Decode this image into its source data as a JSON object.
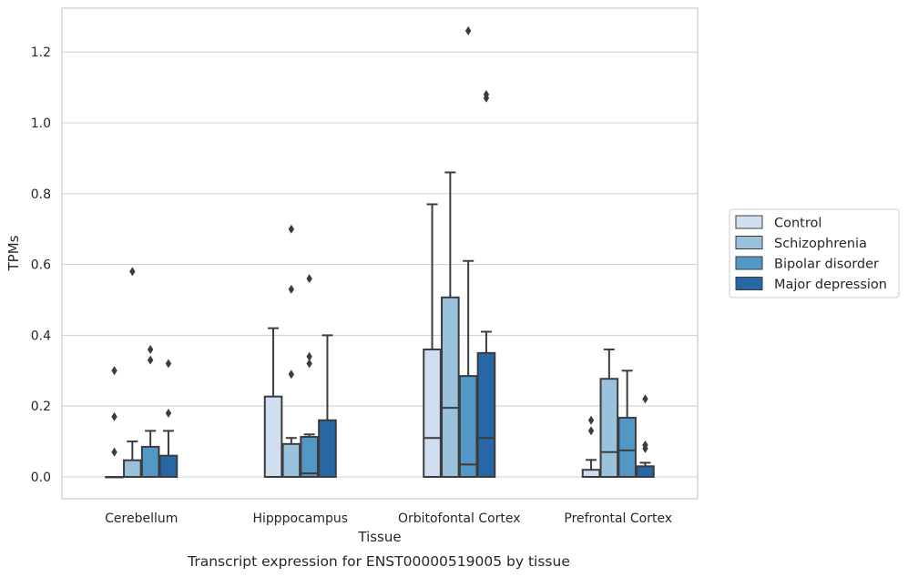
{
  "chart_data": {
    "type": "box",
    "xlabel": "Tissue",
    "ylabel": "TPMs",
    "caption": "Transcript expression for ENST00000519005 by tissue",
    "ylim": [
      -0.062,
      1.325
    ],
    "yticks": [
      0.0,
      0.2,
      0.4,
      0.6,
      0.8,
      1.0,
      1.2
    ],
    "ytick_labels": [
      "0.0",
      "0.2",
      "0.4",
      "0.6",
      "0.8",
      "1.0",
      "1.2"
    ],
    "grid": "horizontal",
    "legend_position": "right",
    "categories": [
      "Cerebellum",
      "Hipppocampus",
      "Orbitofontal Cortex",
      "Prefrontal Cortex"
    ],
    "series": [
      {
        "name": "Control",
        "color": "#cfdff0",
        "boxes": [
          {
            "q1": 0.0,
            "median": 0.0,
            "q3": 0.0,
            "whisker_low": 0.0,
            "whisker_high": 0.0,
            "outliers": [
              0.07,
              0.17,
              0.3
            ]
          },
          {
            "q1": 0.0,
            "median": 0.0,
            "q3": 0.227,
            "whisker_low": 0.0,
            "whisker_high": 0.42,
            "outliers": []
          },
          {
            "q1": 0.0,
            "median": 0.11,
            "q3": 0.36,
            "whisker_low": 0.0,
            "whisker_high": 0.77,
            "outliers": []
          },
          {
            "q1": 0.0,
            "median": 0.0,
            "q3": 0.02,
            "whisker_low": 0.0,
            "whisker_high": 0.048,
            "outliers": [
              0.13,
              0.16
            ]
          }
        ]
      },
      {
        "name": "Schizophrenia",
        "color": "#9ac2dc",
        "boxes": [
          {
            "q1": 0.0,
            "median": 0.0,
            "q3": 0.047,
            "whisker_low": 0.0,
            "whisker_high": 0.1,
            "outliers": [
              0.58
            ]
          },
          {
            "q1": 0.0,
            "median": 0.0,
            "q3": 0.093,
            "whisker_low": 0.0,
            "whisker_high": 0.11,
            "outliers": [
              0.29,
              0.53,
              0.7
            ]
          },
          {
            "q1": 0.0,
            "median": 0.195,
            "q3": 0.507,
            "whisker_low": 0.0,
            "whisker_high": 0.86,
            "outliers": []
          },
          {
            "q1": 0.0,
            "median": 0.07,
            "q3": 0.277,
            "whisker_low": 0.0,
            "whisker_high": 0.36,
            "outliers": []
          }
        ]
      },
      {
        "name": "Bipolar disorder",
        "color": "#5397c7",
        "boxes": [
          {
            "q1": 0.0,
            "median": 0.0,
            "q3": 0.085,
            "whisker_low": 0.0,
            "whisker_high": 0.13,
            "outliers": [
              0.33,
              0.36
            ]
          },
          {
            "q1": 0.0,
            "median": 0.01,
            "q3": 0.113,
            "whisker_low": 0.0,
            "whisker_high": 0.12,
            "outliers": [
              0.32,
              0.34,
              0.56
            ]
          },
          {
            "q1": 0.0,
            "median": 0.035,
            "q3": 0.285,
            "whisker_low": 0.0,
            "whisker_high": 0.61,
            "outliers": [
              1.26
            ]
          },
          {
            "q1": 0.0,
            "median": 0.075,
            "q3": 0.167,
            "whisker_low": 0.0,
            "whisker_high": 0.3,
            "outliers": []
          }
        ]
      },
      {
        "name": "Major depression",
        "color": "#2867a6",
        "boxes": [
          {
            "q1": 0.0,
            "median": 0.0,
            "q3": 0.06,
            "whisker_low": 0.0,
            "whisker_high": 0.13,
            "outliers": [
              0.18,
              0.32
            ]
          },
          {
            "q1": 0.0,
            "median": 0.0,
            "q3": 0.16,
            "whisker_low": 0.0,
            "whisker_high": 0.4,
            "outliers": []
          },
          {
            "q1": 0.0,
            "median": 0.11,
            "q3": 0.35,
            "whisker_low": 0.0,
            "whisker_high": 0.41,
            "outliers": [
              1.07,
              1.08
            ]
          },
          {
            "q1": 0.0,
            "median": 0.0,
            "q3": 0.03,
            "whisker_low": 0.0,
            "whisker_high": 0.04,
            "outliers": [
              0.08,
              0.09,
              0.22
            ]
          }
        ]
      }
    ]
  }
}
